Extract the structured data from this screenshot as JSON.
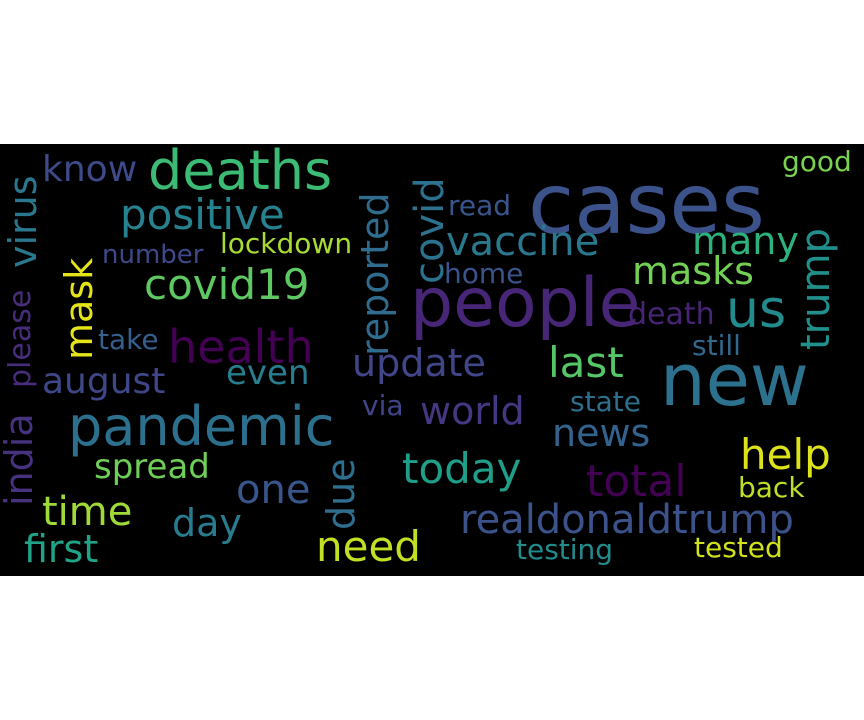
{
  "cloud": {
    "background": "#000000",
    "words": [
      {
        "text": "cases",
        "color": "#3b528b"
      },
      {
        "text": "new",
        "color": "#2c728e"
      },
      {
        "text": "people",
        "color": "#482677"
      },
      {
        "text": "deaths",
        "color": "#3cbb75"
      },
      {
        "text": "pandemic",
        "color": "#2d708e"
      },
      {
        "text": "health",
        "color": "#440154"
      },
      {
        "text": "positive",
        "color": "#26828e"
      },
      {
        "text": "covid19",
        "color": "#5ec962"
      },
      {
        "text": "us",
        "color": "#238a8d"
      },
      {
        "text": "vaccine",
        "color": "#2a788e"
      },
      {
        "text": "masks",
        "color": "#73d055"
      },
      {
        "text": "many",
        "color": "#2db27d"
      },
      {
        "text": "know",
        "color": "#3e4a89"
      },
      {
        "text": "last",
        "color": "#55c667"
      },
      {
        "text": "august",
        "color": "#3f4788"
      },
      {
        "text": "update",
        "color": "#404688"
      },
      {
        "text": "world",
        "color": "#453781"
      },
      {
        "text": "news",
        "color": "#33638d"
      },
      {
        "text": "even",
        "color": "#287d8e"
      },
      {
        "text": "spread",
        "color": "#6ece58"
      },
      {
        "text": "one",
        "color": "#39568c"
      },
      {
        "text": "today",
        "color": "#1f9e89"
      },
      {
        "text": "total",
        "color": "#440154"
      },
      {
        "text": "help",
        "color": "#dde318"
      },
      {
        "text": "time",
        "color": "#a0da39"
      },
      {
        "text": "day",
        "color": "#287c8e"
      },
      {
        "text": "first",
        "color": "#20a386"
      },
      {
        "text": "need",
        "color": "#c2df23"
      },
      {
        "text": "realdonaldtrump",
        "color": "#3b528b"
      },
      {
        "text": "testing",
        "color": "#228c8d"
      },
      {
        "text": "tested",
        "color": "#d0e11c"
      },
      {
        "text": "back",
        "color": "#bddf26"
      },
      {
        "text": "lockdown",
        "color": "#a8db34"
      },
      {
        "text": "number",
        "color": "#3e4989"
      },
      {
        "text": "read",
        "color": "#39568c"
      },
      {
        "text": "home",
        "color": "#3b528b"
      },
      {
        "text": "take",
        "color": "#35608d"
      },
      {
        "text": "still",
        "color": "#31688e"
      },
      {
        "text": "death",
        "color": "#482475"
      },
      {
        "text": "state",
        "color": "#2d708e"
      },
      {
        "text": "via",
        "color": "#404588"
      },
      {
        "text": "good",
        "color": "#7ad151"
      },
      {
        "text": "virus",
        "color": "#2a788e"
      },
      {
        "text": "india",
        "color": "#46327e"
      },
      {
        "text": "please",
        "color": "#472d7b"
      },
      {
        "text": "mask",
        "color": "#e5e419"
      },
      {
        "text": "reported",
        "color": "#2f6c8e"
      },
      {
        "text": "covid",
        "color": "#2c728e"
      },
      {
        "text": "trump",
        "color": "#21908d"
      },
      {
        "text": "due",
        "color": "#2e6e8e"
      }
    ]
  }
}
